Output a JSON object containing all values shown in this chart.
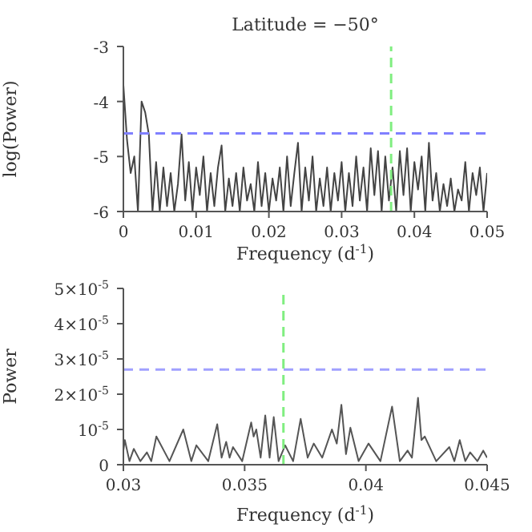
{
  "chart_data": [
    {
      "type": "line",
      "title": "Latitude = −50°",
      "xlabel": "Frequency (d$^{-1}$)",
      "ylabel": "log(Power)",
      "xlim": [
        0,
        0.05
      ],
      "xticks": [
        0,
        0.01,
        0.02,
        0.03,
        0.04,
        0.05
      ],
      "ylim": [
        -6,
        -3
      ],
      "yticks": [
        -6,
        -5,
        -4,
        -3
      ],
      "series": [
        {
          "color": "#444444",
          "x": [
            0,
            0.0005,
            0.001,
            0.0015,
            0.002,
            0.0025,
            0.003,
            0.0035,
            0.004,
            0.0045,
            0.005,
            0.0055,
            0.006,
            0.0065,
            0.007,
            0.0075,
            0.008,
            0.0085,
            0.009,
            0.0095,
            0.01,
            0.0105,
            0.011,
            0.0115,
            0.012,
            0.0125,
            0.013,
            0.0135,
            0.014,
            0.0145,
            0.015,
            0.0155,
            0.016,
            0.0165,
            0.017,
            0.0175,
            0.018,
            0.0185,
            0.019,
            0.0195,
            0.02,
            0.0205,
            0.021,
            0.0215,
            0.022,
            0.0225,
            0.023,
            0.0235,
            0.024,
            0.0245,
            0.025,
            0.0255,
            0.026,
            0.0265,
            0.027,
            0.0275,
            0.028,
            0.0285,
            0.029,
            0.0295,
            0.03,
            0.0305,
            0.031,
            0.0315,
            0.032,
            0.0325,
            0.033,
            0.0335,
            0.034,
            0.0345,
            0.035,
            0.0355,
            0.036,
            0.0365,
            0.037,
            0.0375,
            0.038,
            0.0385,
            0.039,
            0.0395,
            0.04,
            0.0405,
            0.041,
            0.0415,
            0.042,
            0.0425,
            0.043,
            0.0435,
            0.044,
            0.0445,
            0.045,
            0.0455,
            0.046,
            0.0465,
            0.047,
            0.0475,
            0.048,
            0.0485,
            0.049,
            0.0495,
            0.05
          ],
          "values": [
            -3.7,
            -4.7,
            -5.3,
            -5.0,
            -6,
            -4.0,
            -4.2,
            -4.6,
            -6,
            -5.1,
            -6,
            -5.2,
            -5.9,
            -5.3,
            -6,
            -5.5,
            -4.6,
            -5.8,
            -5.1,
            -6,
            -5.2,
            -5.7,
            -5.0,
            -6,
            -5.3,
            -5.9,
            -5.2,
            -4.8,
            -6,
            -5.4,
            -5.9,
            -5.3,
            -6,
            -5.2,
            -5.8,
            -5.5,
            -6,
            -5.1,
            -5.9,
            -5.3,
            -6,
            -5.4,
            -5.8,
            -5.2,
            -6,
            -5.0,
            -5.9,
            -5.3,
            -4.75,
            -6,
            -5.2,
            -5.8,
            -5.0,
            -6,
            -5.4,
            -5.9,
            -5.2,
            -6,
            -5.3,
            -5.8,
            -5.1,
            -6,
            -5.3,
            -5.9,
            -5.0,
            -5.8,
            -5.2,
            -6,
            -4.85,
            -5.7,
            -4.9,
            -6,
            -5.0,
            -5.8,
            -5.2,
            -6,
            -4.9,
            -5.7,
            -4.85,
            -6,
            -5.1,
            -5.6,
            -5.0,
            -6,
            -4.75,
            -5.8,
            -5.3,
            -6,
            -5.5,
            -5.9,
            -5.4,
            -6,
            -5.6,
            -5.8,
            -5.1,
            -6,
            -5.3,
            -5.7,
            -5.2,
            -6,
            -5.3
          ]
        }
      ],
      "ref_lines": [
        {
          "axis": "y",
          "value": -4.58,
          "color": "#8080ff",
          "line_style": "dashed"
        },
        {
          "axis": "x",
          "value": 0.0368,
          "color": "#80ee80",
          "line_style": "dashed"
        }
      ]
    },
    {
      "type": "line",
      "xlabel": "Frequency (d$^{-1}$)",
      "ylabel": "Power",
      "xlim": [
        0.03,
        0.045
      ],
      "xticks": [
        0.03,
        0.035,
        0.04,
        0.045
      ],
      "ylim": [
        0,
        5e-05
      ],
      "yticks": [
        0,
        {
          "value": 1e-05,
          "label": "10$^{-5}$"
        },
        {
          "value": 2e-05,
          "label": "2×10$^{-5}$"
        },
        {
          "value": 3e-05,
          "label": "3×10$^{-5}$"
        },
        {
          "value": 4e-05,
          "label": "4×10$^{-5}$"
        },
        {
          "value": 5e-05,
          "label": "5×10$^{-5}$"
        }
      ],
      "series": [
        {
          "color": "#555555",
          "x": [
            0.03,
            0.03006,
            0.03025,
            0.03043,
            0.0307,
            0.03097,
            0.03115,
            0.03136,
            0.0319,
            0.03247,
            0.0328,
            0.03301,
            0.0335,
            0.03387,
            0.03405,
            0.03424,
            0.03438,
            0.03452,
            0.0349,
            0.03527,
            0.03537,
            0.03548,
            0.03566,
            0.03585,
            0.03603,
            0.0362,
            0.0364,
            0.03667,
            0.037,
            0.03731,
            0.0376,
            0.03785,
            0.0382,
            0.0386,
            0.0388,
            0.03899,
            0.03918,
            0.03936,
            0.0397,
            0.04011,
            0.0406,
            0.04108,
            0.0414,
            0.04172,
            0.0419,
            0.04215,
            0.04229,
            0.04243,
            0.0429,
            0.04344,
            0.04365,
            0.04387,
            0.0441,
            0.0443,
            0.0446,
            0.04484,
            0.045
          ],
          "values": [
            4e-06,
            7e-06,
            1e-06,
            4.5e-06,
            1e-06,
            3.5e-06,
            1e-06,
            8e-06,
            1e-06,
            1e-05,
            1e-06,
            5.5e-06,
            1e-06,
            1.15e-05,
            2e-06,
            6.5e-06,
            2e-06,
            5e-06,
            1e-06,
            1.2e-05,
            8e-06,
            1e-05,
            2e-06,
            1.4e-05,
            2e-06,
            1.35e-05,
            1e-06,
            5.5e-06,
            1e-06,
            1.3e-05,
            2e-06,
            6e-06,
            2e-06,
            1e-05,
            6e-06,
            1.7e-05,
            3e-06,
            1.05e-05,
            1e-06,
            6e-06,
            1e-06,
            1.65e-05,
            1e-06,
            4e-06,
            2e-06,
            1.9e-05,
            7e-06,
            8e-06,
            1e-06,
            5e-06,
            1e-06,
            7e-06,
            1e-06,
            3.5e-06,
            1e-06,
            4e-06,
            2e-06
          ]
        }
      ],
      "ref_lines": [
        {
          "axis": "y",
          "value": 2.7e-05,
          "color": "#a0a0ff",
          "line_style": "dashed"
        },
        {
          "axis": "x",
          "value": 0.0366,
          "color": "#80ee80",
          "line_style": "dashed"
        }
      ]
    }
  ]
}
